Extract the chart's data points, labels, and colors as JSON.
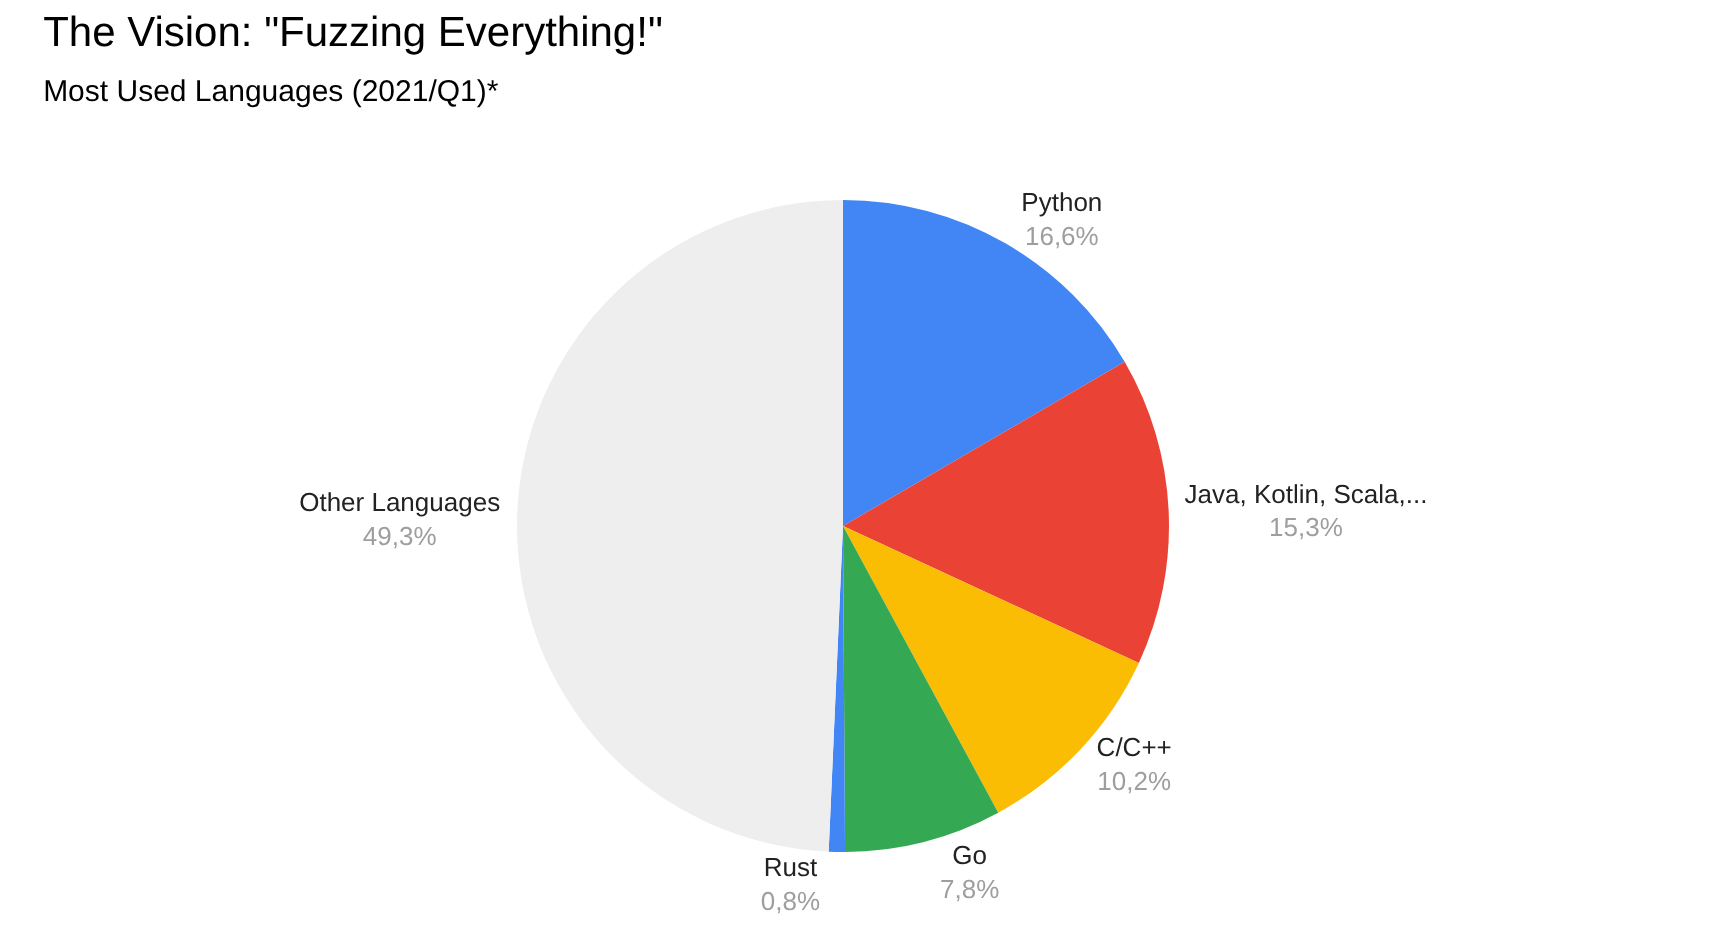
{
  "chart_data": {
    "type": "pie",
    "title": "The Vision: \"Fuzzing Everything!\"",
    "subtitle": "Most Used Languages (2021/Q1)*",
    "categories": [
      "Python",
      "Java, Kotlin, Scala,...",
      "C/C++",
      "Go",
      "Rust",
      "Other Languages"
    ],
    "values": [
      16.6,
      15.3,
      10.2,
      7.8,
      0.8,
      49.3
    ],
    "value_labels": [
      "16,6%",
      "15,3%",
      "10,2%",
      "7,8%",
      "0,8%",
      "49,3%"
    ],
    "colors": [
      "#4285f4",
      "#ea4335",
      "#fbbc04",
      "#34a853",
      "#4285f4",
      "#eeeeee"
    ],
    "legend": false
  }
}
